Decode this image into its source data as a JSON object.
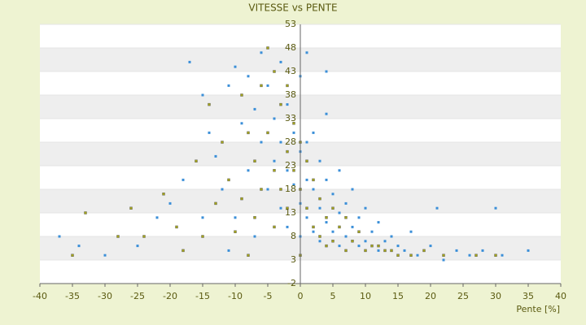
{
  "chart_data": {
    "type": "scatter",
    "title": "VITESSE vs PENTE",
    "x_label": "Pente [%]",
    "xlim": [
      -40,
      40
    ],
    "xticks": [
      -40,
      -35,
      -30,
      -25,
      -20,
      -15,
      -10,
      -5,
      0,
      5,
      10,
      15,
      20,
      25,
      30,
      35,
      40
    ],
    "ylim": [
      -2,
      53
    ],
    "yticks": [
      -2,
      3,
      8,
      13,
      18,
      23,
      28,
      33,
      38,
      43,
      48,
      53
    ],
    "grid": true,
    "series": [
      {
        "color": "#3b8fd8",
        "x": [
          -37,
          -34,
          -30,
          -25,
          -22,
          -20,
          -18,
          -17,
          -15,
          -14,
          -13,
          -12,
          -11,
          -10,
          -10,
          -9,
          -8,
          -8,
          -7,
          -7,
          -6,
          -6,
          -5,
          -5,
          -4,
          -4,
          -3,
          -3,
          -3,
          -2,
          -2,
          -2,
          -1,
          -1,
          0,
          0,
          0,
          0,
          1,
          1,
          1,
          2,
          2,
          2,
          3,
          3,
          3,
          4,
          4,
          4,
          5,
          5,
          6,
          6,
          6,
          7,
          7,
          8,
          8,
          9,
          9,
          10,
          10,
          11,
          12,
          12,
          13,
          14,
          15,
          16,
          17,
          18,
          20,
          21,
          22,
          24,
          26,
          28,
          30,
          31,
          35,
          1,
          4,
          -11,
          -15
        ],
        "values": [
          8,
          6,
          4,
          6,
          12,
          15,
          20,
          45,
          38,
          30,
          25,
          18,
          40,
          44,
          12,
          32,
          42,
          22,
          35,
          8,
          47,
          28,
          40,
          18,
          33,
          24,
          45,
          28,
          14,
          36,
          22,
          10,
          30,
          19,
          42,
          26,
          15,
          8,
          28,
          20,
          12,
          30,
          18,
          9,
          24,
          14,
          7,
          34,
          20,
          11,
          17,
          9,
          22,
          13,
          6,
          15,
          8,
          18,
          10,
          12,
          6,
          14,
          7,
          9,
          11,
          5,
          7,
          8,
          6,
          5,
          9,
          4,
          6,
          14,
          3,
          5,
          4,
          5,
          14,
          4,
          5,
          47,
          43,
          5,
          12
        ]
      },
      {
        "color": "#a3a31c",
        "x": [
          -33,
          -28,
          -26,
          -24,
          -21,
          -19,
          -18,
          -16,
          -15,
          -14,
          -13,
          -12,
          -11,
          -10,
          -9,
          -9,
          -8,
          -7,
          -7,
          -6,
          -6,
          -5,
          -5,
          -4,
          -4,
          -4,
          -3,
          -3,
          -2,
          -2,
          -2,
          -1,
          -1,
          0,
          0,
          0,
          1,
          1,
          2,
          2,
          3,
          3,
          4,
          4,
          5,
          5,
          6,
          7,
          7,
          8,
          9,
          10,
          11,
          12,
          13,
          14,
          15,
          17,
          19,
          22,
          27,
          30,
          -35,
          -8
        ],
        "values": [
          13,
          8,
          14,
          8,
          17,
          10,
          5,
          24,
          8,
          36,
          15,
          28,
          20,
          9,
          38,
          16,
          30,
          24,
          12,
          40,
          18,
          48,
          30,
          43,
          22,
          10,
          36,
          18,
          40,
          26,
          14,
          32,
          22,
          28,
          18,
          4,
          24,
          14,
          20,
          10,
          16,
          8,
          12,
          6,
          14,
          7,
          10,
          12,
          5,
          7,
          9,
          5,
          6,
          6,
          5,
          5,
          4,
          4,
          5,
          4,
          4,
          4,
          4,
          4
        ]
      }
    ]
  }
}
